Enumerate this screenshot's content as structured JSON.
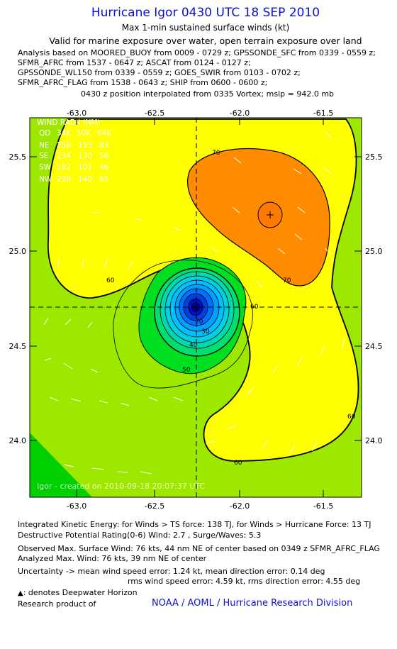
{
  "title": "Hurricane Igor 0430 UTC 18 SEP 2010",
  "subtitle": "Max 1-min sustained surface winds (kt)",
  "valid_line": "Valid for marine exposure over water, open terrain exposure over land",
  "analysis_lines": [
    "Analysis based on MOORED_BUOY from 0009 - 0729 z; GPSSONDE_SFC from 0339 - 0559 z;",
    "SFMR_AFRC from 1537 - 0647 z; ASCAT from 0124 - 0127 z;",
    "GPSSONDE_WL150 from 0339 - 0559 z; GOES_SWIR from 0103 - 0702 z;",
    "SFMR_AFRC_FLAG from 1538 - 0643 z; SHIP from 0600 - 0600 z;"
  ],
  "position_line": "0430 z position interpolated from 0335 Vortex; mslp = 942.0 mb",
  "map": {
    "lon_ticks": [
      "-63.0",
      "-62.5",
      "-62.0",
      "-61.5"
    ],
    "lat_ticks": [
      "25.5",
      "25.0",
      "24.5",
      "24.0"
    ],
    "contour_labels": [
      "70",
      "70",
      "60",
      "60",
      "60",
      "60",
      "50",
      "40",
      "30",
      "70"
    ],
    "center_lon": -62.25,
    "center_lat": 24.7,
    "wind_radii": {
      "header": "WIND RADII (NM)",
      "rows": [
        [
          "QD",
          "34K",
          "50K",
          "64K"
        ],
        [
          "NE",
          "258",
          "153",
          "83"
        ],
        [
          "SE",
          "234",
          "130",
          "56"
        ],
        [
          "SW",
          "182",
          "101",
          "46"
        ],
        [
          "NW",
          "238",
          "140",
          "65"
        ]
      ]
    },
    "watermark": "Igor - created on 2010-09-18 20:07:37 UTC",
    "colors": {
      "c40": "#00d000",
      "c50": "#66ee00",
      "c60": "#ffff00",
      "c70": "#ff8c00",
      "c80": "#ff3000",
      "core_outer": "#00c8ff",
      "core_inner": "#0000c8"
    }
  },
  "footer": {
    "ike": "Integrated Kinetic Energy:  for Winds > TS force: 138 TJ,  for Winds > Hurricane Force: 13 TJ",
    "dpr": "Destructive Potential Rating(0-6)   Wind: 2.7 , Surge/Waves: 5.3",
    "observed": "Observed Max. Surface Wind: 76 kts, 44 nm NE of center based on 0349 z SFMR_AFRC_FLAG",
    "analyzed": "Analyzed Max. Wind: 76 kts, 39 nm NE of center",
    "uncertainty1": "Uncertainty -> mean wind speed error: 1.24 kt,   mean direction error: 0.14 deg",
    "uncertainty2": "rms wind speed error: 4.59 kt,   rms direction error: 4.55 deg",
    "deepwater": ": denotes Deepwater Horizon",
    "research": "Research product of",
    "org": "NOAA / AOML / Hurricane Research Division"
  }
}
